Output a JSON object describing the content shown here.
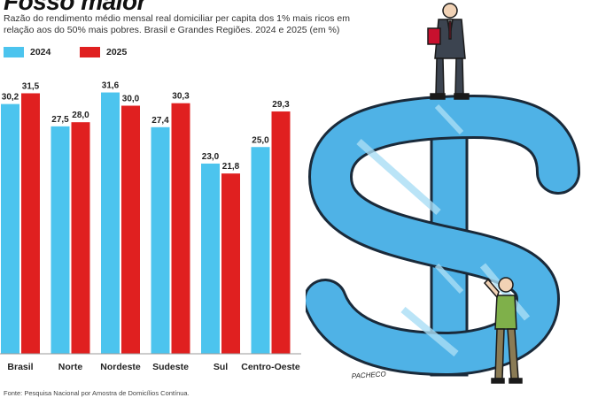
{
  "title": "Fosso maior",
  "subtitle": "Razão do rendimento médio mensal real domiciliar per capita dos 1% mais ricos em relação aos do 50% mais pobres. Brasil e Grandes Regiões. 2024 e 2025 (em %)",
  "source": "Fonte: Pesquisa Nacional por Amostra de Domicílios Contínua.",
  "artist_signature": "PACHECO",
  "colors": {
    "series_2024": "#4cc4ee",
    "series_2025": "#e02020"
  },
  "chart_data": {
    "type": "bar",
    "categories": [
      "Brasil",
      "Norte",
      "Nordeste",
      "Sudeste",
      "Sul",
      "Centro-Oeste"
    ],
    "series": [
      {
        "name": "2024",
        "values": [
          30.2,
          27.5,
          31.6,
          27.4,
          23.0,
          25.0
        ],
        "labels": [
          "30,2",
          "27,5",
          "31,6",
          "27,4",
          "23,0",
          "25,0"
        ]
      },
      {
        "name": "2025",
        "values": [
          31.5,
          28.0,
          30.0,
          30.3,
          21.8,
          29.3
        ],
        "labels": [
          "31,5",
          "28,0",
          "30,0",
          "30,3",
          "21,8",
          "29,3"
        ]
      }
    ],
    "legend_position": "top-left",
    "grid": false
  }
}
